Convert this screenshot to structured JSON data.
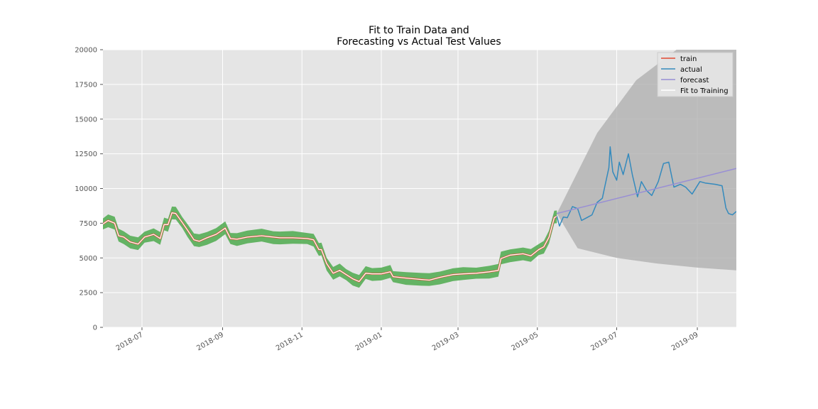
{
  "chart_data": {
    "type": "line",
    "title": [
      "Fit to Train Data and",
      "Forecasting vs Actual Test Values"
    ],
    "xlabel": "",
    "ylabel": "",
    "x_axis": {
      "type": "date",
      "range": [
        "2018-06-01",
        "2019-10-01"
      ],
      "ticks": [
        "2018-07",
        "2018-09",
        "2018-11",
        "2019-01",
        "2019-03",
        "2019-05",
        "2019-07",
        "2019-09"
      ]
    },
    "y_axis": {
      "range": [
        0,
        20000
      ],
      "ticks": [
        0,
        2500,
        5000,
        7500,
        10000,
        12500,
        15000,
        17500,
        20000
      ]
    },
    "grid": true,
    "background": "#e5e5e5",
    "legend": {
      "position": "top-right",
      "entries": [
        {
          "label": "train",
          "color": "#e24a33"
        },
        {
          "label": "actual",
          "color": "#348abd"
        },
        {
          "label": "forecast",
          "color": "#988ed5"
        },
        {
          "label": "Fit to Training",
          "color": "#ffffff"
        }
      ]
    },
    "band_color": "#4daa4d",
    "forecast_interval_color": "#b0b0b0",
    "series": [
      {
        "name": "train",
        "color": "#e24a33",
        "points": [
          [
            "2018-06-01",
            7450
          ],
          [
            "2018-06-05",
            7700
          ],
          [
            "2018-06-10",
            7500
          ],
          [
            "2018-06-13",
            6600
          ],
          [
            "2018-06-17",
            6500
          ],
          [
            "2018-06-22",
            6150
          ],
          [
            "2018-06-28",
            6000
          ],
          [
            "2018-07-03",
            6500
          ],
          [
            "2018-07-10",
            6700
          ],
          [
            "2018-07-15",
            6400
          ],
          [
            "2018-07-18",
            7400
          ],
          [
            "2018-07-21",
            7400
          ],
          [
            "2018-07-24",
            8250
          ],
          [
            "2018-07-27",
            8200
          ],
          [
            "2018-08-01",
            7550
          ],
          [
            "2018-08-05",
            7000
          ],
          [
            "2018-08-10",
            6300
          ],
          [
            "2018-08-14",
            6200
          ],
          [
            "2018-08-20",
            6450
          ],
          [
            "2018-08-27",
            6700
          ],
          [
            "2018-09-03",
            7150
          ],
          [
            "2018-09-07",
            6400
          ],
          [
            "2018-09-12",
            6350
          ],
          [
            "2018-09-20",
            6500
          ],
          [
            "2018-10-01",
            6600
          ],
          [
            "2018-10-10",
            6500
          ],
          [
            "2018-10-15",
            6450
          ],
          [
            "2018-10-25",
            6450
          ],
          [
            "2018-11-05",
            6400
          ],
          [
            "2018-11-10",
            6300
          ],
          [
            "2018-11-14",
            5600
          ],
          [
            "2018-11-16",
            5600
          ],
          [
            "2018-11-20",
            4600
          ],
          [
            "2018-11-25",
            3900
          ],
          [
            "2018-11-30",
            4100
          ],
          [
            "2018-12-05",
            3800
          ],
          [
            "2018-12-10",
            3500
          ],
          [
            "2018-12-15",
            3300
          ],
          [
            "2018-12-20",
            3900
          ],
          [
            "2018-12-25",
            3850
          ],
          [
            "2019-01-01",
            3850
          ],
          [
            "2019-01-08",
            4000
          ],
          [
            "2019-01-10",
            3650
          ],
          [
            "2019-01-20",
            3550
          ],
          [
            "2019-02-01",
            3450
          ],
          [
            "2019-02-07",
            3400
          ],
          [
            "2019-02-15",
            3600
          ],
          [
            "2019-02-25",
            3800
          ],
          [
            "2019-03-05",
            3850
          ],
          [
            "2019-03-15",
            3900
          ],
          [
            "2019-03-25",
            4000
          ],
          [
            "2019-04-01",
            4100
          ],
          [
            "2019-04-03",
            4950
          ],
          [
            "2019-04-10",
            5200
          ],
          [
            "2019-04-20",
            5300
          ],
          [
            "2019-04-26",
            5150
          ],
          [
            "2019-05-02",
            5600
          ],
          [
            "2019-05-06",
            5800
          ],
          [
            "2019-05-10",
            6500
          ],
          [
            "2019-05-14",
            7900
          ],
          [
            "2019-05-16",
            8000
          ]
        ]
      },
      {
        "name": "actual",
        "color": "#348abd",
        "points": [
          [
            "2019-05-16",
            8000
          ],
          [
            "2019-05-18",
            7300
          ],
          [
            "2019-05-21",
            7950
          ],
          [
            "2019-05-24",
            7900
          ],
          [
            "2019-05-28",
            8700
          ],
          [
            "2019-06-01",
            8550
          ],
          [
            "2019-06-04",
            7700
          ],
          [
            "2019-06-08",
            7900
          ],
          [
            "2019-06-12",
            8100
          ],
          [
            "2019-06-16",
            9000
          ],
          [
            "2019-06-20",
            9300
          ],
          [
            "2019-06-22",
            10200
          ],
          [
            "2019-06-25",
            11500
          ],
          [
            "2019-06-26",
            13000
          ],
          [
            "2019-06-28",
            11200
          ],
          [
            "2019-07-01",
            10600
          ],
          [
            "2019-07-03",
            11900
          ],
          [
            "2019-07-06",
            11000
          ],
          [
            "2019-07-10",
            12500
          ],
          [
            "2019-07-13",
            11000
          ],
          [
            "2019-07-17",
            9400
          ],
          [
            "2019-07-20",
            10500
          ],
          [
            "2019-07-24",
            9850
          ],
          [
            "2019-07-28",
            9500
          ],
          [
            "2019-08-02",
            10500
          ],
          [
            "2019-08-06",
            11800
          ],
          [
            "2019-08-10",
            11900
          ],
          [
            "2019-08-14",
            10100
          ],
          [
            "2019-08-19",
            10300
          ],
          [
            "2019-08-23",
            10100
          ],
          [
            "2019-08-28",
            9600
          ],
          [
            "2019-09-03",
            10500
          ],
          [
            "2019-09-07",
            10400
          ],
          [
            "2019-09-15",
            10300
          ],
          [
            "2019-09-20",
            10200
          ],
          [
            "2019-09-23",
            8600
          ],
          [
            "2019-09-25",
            8200
          ],
          [
            "2019-09-28",
            8100
          ],
          [
            "2019-10-01",
            8350
          ]
        ]
      },
      {
        "name": "forecast",
        "color": "#988ed5",
        "points": [
          [
            "2019-05-16",
            8200
          ],
          [
            "2019-10-01",
            11450
          ]
        ]
      },
      {
        "name": "Fit to Training",
        "color": "#ffffff",
        "points": [
          [
            "2018-06-01",
            7450
          ],
          [
            "2018-06-05",
            7700
          ],
          [
            "2018-06-10",
            7500
          ],
          [
            "2018-06-13",
            6600
          ],
          [
            "2018-06-17",
            6500
          ],
          [
            "2018-06-22",
            6150
          ],
          [
            "2018-06-28",
            6000
          ],
          [
            "2018-07-03",
            6500
          ],
          [
            "2018-07-10",
            6700
          ],
          [
            "2018-07-15",
            6400
          ],
          [
            "2018-07-18",
            7400
          ],
          [
            "2018-07-21",
            7400
          ],
          [
            "2018-07-24",
            8250
          ],
          [
            "2018-07-27",
            8200
          ],
          [
            "2018-08-01",
            7550
          ],
          [
            "2018-08-05",
            7000
          ],
          [
            "2018-08-10",
            6300
          ],
          [
            "2018-08-14",
            6200
          ],
          [
            "2018-08-20",
            6450
          ],
          [
            "2018-08-27",
            6700
          ],
          [
            "2018-09-03",
            7150
          ],
          [
            "2018-09-07",
            6400
          ],
          [
            "2018-09-12",
            6350
          ],
          [
            "2018-09-20",
            6500
          ],
          [
            "2018-10-01",
            6600
          ],
          [
            "2018-10-10",
            6500
          ],
          [
            "2018-10-15",
            6450
          ],
          [
            "2018-10-25",
            6450
          ],
          [
            "2018-11-05",
            6400
          ],
          [
            "2018-11-10",
            6300
          ],
          [
            "2018-11-14",
            5600
          ],
          [
            "2018-11-16",
            5600
          ],
          [
            "2018-11-20",
            4600
          ],
          [
            "2018-11-25",
            3900
          ],
          [
            "2018-11-30",
            4100
          ],
          [
            "2018-12-05",
            3800
          ],
          [
            "2018-12-10",
            3500
          ],
          [
            "2018-12-15",
            3300
          ],
          [
            "2018-12-20",
            3900
          ],
          [
            "2018-12-25",
            3850
          ],
          [
            "2019-01-01",
            3850
          ],
          [
            "2019-01-08",
            4000
          ],
          [
            "2019-01-10",
            3650
          ],
          [
            "2019-01-20",
            3550
          ],
          [
            "2019-02-01",
            3450
          ],
          [
            "2019-02-07",
            3400
          ],
          [
            "2019-02-15",
            3600
          ],
          [
            "2019-02-25",
            3800
          ],
          [
            "2019-03-05",
            3850
          ],
          [
            "2019-03-15",
            3900
          ],
          [
            "2019-03-25",
            4000
          ],
          [
            "2019-04-01",
            4100
          ],
          [
            "2019-04-03",
            4950
          ],
          [
            "2019-04-10",
            5200
          ],
          [
            "2019-04-20",
            5300
          ],
          [
            "2019-04-26",
            5150
          ],
          [
            "2019-05-02",
            5600
          ],
          [
            "2019-05-06",
            5800
          ],
          [
            "2019-05-10",
            6500
          ],
          [
            "2019-05-14",
            7900
          ],
          [
            "2019-05-16",
            8000
          ]
        ]
      }
    ],
    "fit_band_halfwidth": 450,
    "forecast_interval": {
      "upper": [
        [
          "2019-05-16",
          8200
        ],
        [
          "2019-06-16",
          14000
        ],
        [
          "2019-07-16",
          17800
        ],
        [
          "2019-08-16",
          20000
        ],
        [
          "2019-10-01",
          20000
        ]
      ],
      "lower": [
        [
          "2019-05-16",
          8200
        ],
        [
          "2019-06-01",
          5700
        ],
        [
          "2019-07-01",
          5000
        ],
        [
          "2019-08-01",
          4600
        ],
        [
          "2019-09-01",
          4300
        ],
        [
          "2019-10-01",
          4100
        ]
      ]
    }
  }
}
